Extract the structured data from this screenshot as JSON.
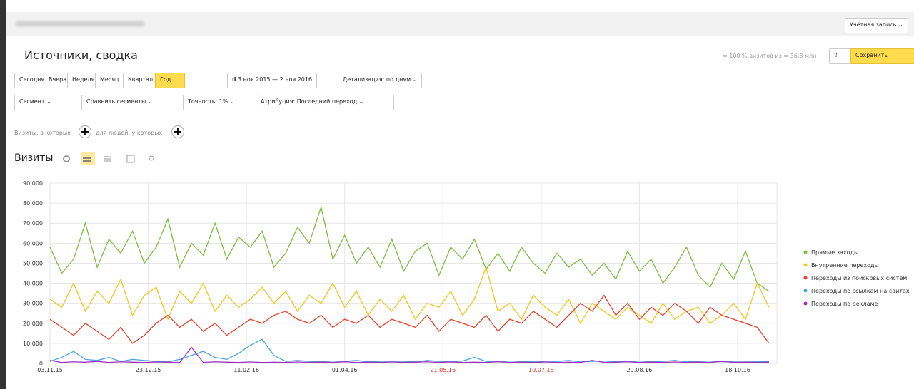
{
  "header": {
    "account": "Учётная запись"
  },
  "title": "Источники, сводка",
  "stats": "≈ 100 % визитов из ≈ 36,8 млн",
  "save": "Сохранить",
  "periods": [
    "Сегодня",
    "Вчера",
    "Неделя",
    "Месяц",
    "Квартал",
    "Год"
  ],
  "date_range": "3 ноя 2015 — 2 ноя 2016",
  "detail": "Детализация: по дням",
  "filters": [
    "Сегмент",
    "Сравнить сегменты",
    "Точность: 1%",
    "Атрибуция: Последний переход"
  ],
  "segment_builder": {
    "visits_in": "Визиты, в которых",
    "people_with": "для людей, у которых"
  },
  "metric": "Визиты",
  "chart_data": {
    "type": "line",
    "grid": true,
    "legend": "right",
    "x": [
      0,
      6,
      12,
      18,
      24,
      30,
      36,
      42,
      48,
      54,
      60,
      66,
      72,
      78,
      84,
      90,
      96,
      102,
      108,
      114,
      120,
      126,
      132,
      138,
      144,
      150,
      156,
      162,
      168,
      174,
      180,
      186,
      192,
      198,
      204,
      210,
      216,
      222,
      228,
      234,
      240,
      246,
      252,
      258,
      264,
      270,
      276,
      282,
      288,
      294,
      300,
      306,
      312,
      318,
      324,
      330,
      336,
      342,
      348,
      354,
      360,
      366
    ],
    "xlim": [
      0,
      370
    ],
    "xticks": [
      {
        "value": 0,
        "label": "03.11.15"
      },
      {
        "value": 50,
        "label": "23.12.15"
      },
      {
        "value": 100,
        "label": "11.02.16"
      },
      {
        "value": 150,
        "label": "01.04.16"
      },
      {
        "value": 200,
        "label": "21.05.16",
        "color": "#e0302a"
      },
      {
        "value": 250,
        "label": "10.07.16",
        "color": "#e0302a"
      },
      {
        "value": 300,
        "label": "29.08.16"
      },
      {
        "value": 350,
        "label": "18.10.16"
      }
    ],
    "ylim": [
      0,
      90000
    ],
    "yticks": [
      0,
      {
        "value": 10000,
        "label": "10 000"
      },
      {
        "value": 20000,
        "label": "20 000"
      },
      {
        "value": 30000,
        "label": "30 000"
      },
      {
        "value": 40000,
        "label": "40 000"
      },
      {
        "value": 50000,
        "label": "50 000"
      },
      {
        "value": 60000,
        "label": "60 000"
      },
      {
        "value": 70000,
        "label": "70 000"
      },
      {
        "value": 80000,
        "label": "80 000"
      },
      {
        "value": 90000,
        "label": "90 000"
      }
    ],
    "series": [
      {
        "name": "Прямые заходы",
        "color": "#7cbf3f",
        "values": [
          58000,
          45000,
          52000,
          70000,
          48000,
          62000,
          55000,
          66000,
          50000,
          58000,
          72000,
          48000,
          60000,
          54000,
          70000,
          52000,
          63000,
          58000,
          66000,
          48000,
          55000,
          68000,
          60000,
          78000,
          52000,
          64000,
          50000,
          58000,
          48000,
          62000,
          46000,
          56000,
          60000,
          44000,
          58000,
          52000,
          62000,
          47000,
          55000,
          46000,
          58000,
          50000,
          45000,
          55000,
          48000,
          52000,
          44000,
          50000,
          42000,
          56000,
          46000,
          52000,
          40000,
          48000,
          58000,
          44000,
          38000,
          50000,
          42000,
          56000,
          40000,
          36000
        ]
      },
      {
        "name": "Внутренние переходы",
        "color": "#f5c518",
        "values": [
          32000,
          28000,
          40000,
          26000,
          36000,
          30000,
          42000,
          24000,
          34000,
          38000,
          22000,
          36000,
          30000,
          40000,
          26000,
          34000,
          28000,
          32000,
          38000,
          30000,
          36000,
          26000,
          34000,
          30000,
          40000,
          28000,
          36000,
          24000,
          32000,
          26000,
          34000,
          22000,
          30000,
          28000,
          36000,
          24000,
          32000,
          48000,
          26000,
          30000,
          22000,
          34000,
          28000,
          24000,
          32000,
          20000,
          30000,
          26000,
          22000,
          28000,
          24000,
          20000,
          30000,
          22000,
          26000,
          28000,
          20000,
          24000,
          30000,
          22000,
          40000,
          28000
        ]
      },
      {
        "name": "Переходы из поисковых систем",
        "color": "#e8412c",
        "values": [
          22000,
          18000,
          14000,
          20000,
          16000,
          12000,
          18000,
          10000,
          14000,
          20000,
          24000,
          18000,
          22000,
          16000,
          20000,
          14000,
          18000,
          22000,
          20000,
          24000,
          26000,
          22000,
          20000,
          24000,
          18000,
          22000,
          20000,
          24000,
          18000,
          22000,
          20000,
          18000,
          24000,
          16000,
          22000,
          20000,
          18000,
          24000,
          16000,
          22000,
          20000,
          26000,
          22000,
          18000,
          24000,
          30000,
          26000,
          34000,
          24000,
          30000,
          22000,
          28000,
          24000,
          30000,
          26000,
          20000,
          28000,
          24000,
          22000,
          20000,
          18000,
          10000
        ]
      },
      {
        "name": "Переходы по ссылкам на сайтах",
        "color": "#4da3e0",
        "values": [
          1000,
          3000,
          6000,
          2000,
          1500,
          3000,
          1000,
          2000,
          1500,
          1000,
          800,
          2000,
          4000,
          6000,
          3000,
          2000,
          5000,
          9000,
          12000,
          4000,
          1000,
          1500,
          1000,
          800,
          1200,
          1000,
          1500,
          800,
          1000,
          1200,
          1000,
          800,
          1500,
          1000,
          800,
          1200,
          3000,
          1000,
          800,
          1200,
          1000,
          800,
          1200,
          1000,
          1500,
          800,
          1000,
          1200,
          800,
          1000,
          1200,
          800,
          1000,
          1500,
          800,
          1000,
          1200,
          800,
          1000,
          1200,
          800,
          1000
        ]
      },
      {
        "name": "Переходы по рекламе",
        "color": "#9b30c4",
        "values": [
          1500,
          500,
          800,
          600,
          1000,
          500,
          800,
          600,
          500,
          700,
          600,
          500,
          8000,
          500,
          800,
          600,
          500,
          700,
          500,
          600,
          500,
          700,
          500,
          600,
          500,
          800,
          500,
          600,
          500,
          700,
          500,
          600,
          800,
          500,
          700,
          500,
          600,
          500,
          800,
          500,
          600,
          500,
          700,
          500,
          600,
          500,
          1500,
          500,
          600,
          800,
          500,
          600,
          500,
          700,
          500,
          600,
          500,
          1000,
          500,
          600,
          500,
          600
        ]
      }
    ]
  }
}
